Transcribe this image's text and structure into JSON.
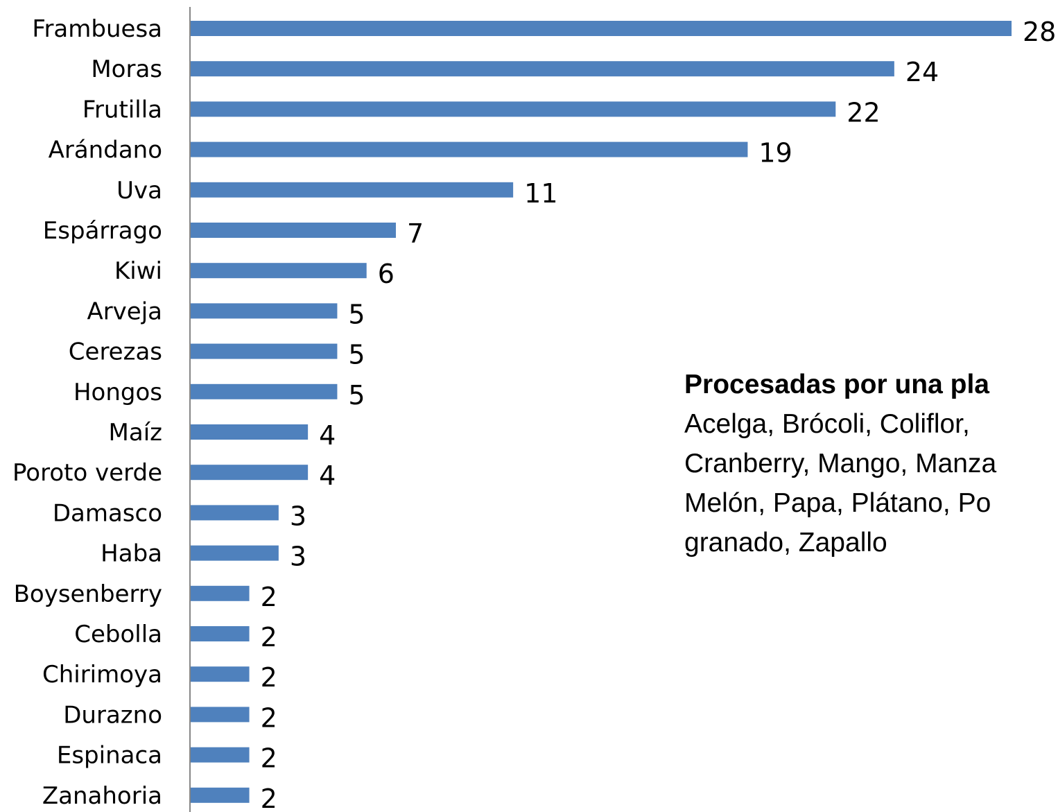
{
  "chart_data": {
    "type": "bar",
    "orientation": "horizontal",
    "categories": [
      "Frambuesa",
      "Moras",
      "Frutilla",
      "Arándano",
      "Uva",
      "Espárrago",
      "Kiwi",
      "Arveja",
      "Cerezas",
      "Hongos",
      "Maíz",
      "Poroto verde",
      "Damasco",
      "Haba",
      "Boysenberry",
      "Cebolla",
      "Chirimoya",
      "Durazno",
      "Espinaca",
      "Zanahoria"
    ],
    "values": [
      28,
      24,
      22,
      19,
      11,
      7,
      6,
      5,
      5,
      5,
      4,
      4,
      3,
      3,
      2,
      2,
      2,
      2,
      2,
      2
    ],
    "data_labels": [
      "28",
      "24",
      "22",
      "19",
      "11",
      "7",
      "6",
      "5",
      "5",
      "5",
      "4",
      "4",
      "3",
      "3",
      "2",
      "2",
      "2",
      "2",
      "2",
      "2"
    ],
    "xlim": [
      0,
      28
    ],
    "grid": false,
    "bar_color": "#4f81bd",
    "axis_color": "#868686"
  },
  "note": {
    "title": "Procesadas por una pla",
    "lines": [
      "Acelga, Brócoli, Coliflor,",
      "Cranberry, Mango, Manza",
      "Melón, Papa, Plátano, Po",
      "granado, Zapallo"
    ]
  }
}
